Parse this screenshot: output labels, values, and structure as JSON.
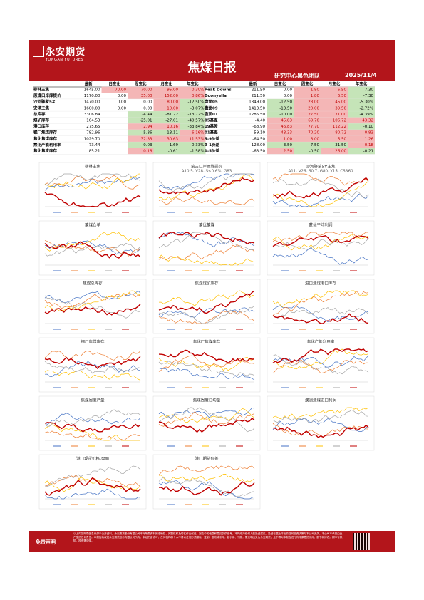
{
  "header": {
    "logo_cn": "永安期货",
    "logo_en": "YONGAN FUTURES",
    "title": "焦煤日报",
    "team": "研究中心黑色团队",
    "date": "2025/11/4"
  },
  "table": {
    "columns": [
      "最新",
      "日变化",
      "周变化",
      "月变化",
      "年变化"
    ],
    "left_rows": [
      [
        "柳林主焦",
        "1645.00",
        "70.00",
        "70.00",
        "95.00",
        "0.30%"
      ],
      [
        "原煤口岸库提价",
        "1170.00",
        "0.00",
        "35.00",
        "152.00",
        "0.86%"
      ],
      [
        "沙河驿蒙5#",
        "1470.00",
        "0.00",
        "0.00",
        "80.00",
        "-12.50%"
      ],
      [
        "安泽主焦",
        "1600.00",
        "0.00",
        "0.00",
        "10.00",
        "-3.07%"
      ],
      [
        "总库存",
        "3306.84",
        null,
        "-4.44",
        "-81.22",
        "-13.72%"
      ],
      [
        "煤矿库存",
        "164.53",
        null,
        "-25.01",
        "-27.01",
        "-40.57%"
      ],
      [
        "港口库存",
        "275.65",
        null,
        "2.94",
        "10.16",
        "-33.84%"
      ],
      [
        "钢厂焦煤库存",
        "782.96",
        null,
        "-5.36",
        "-13.11",
        "6.16%"
      ],
      [
        "焦化焦煤库存",
        "1029.70",
        null,
        "32.33",
        "30.63",
        "11.53%"
      ],
      [
        "焦化产能利用率",
        "73.44",
        null,
        "-0.03",
        "-1.69",
        "-0.33%"
      ],
      [
        "焦化焦炭库存",
        "85.21",
        null,
        "0.18",
        "-0.61",
        "-1.58%"
      ]
    ],
    "right_rows": [
      [
        "Peak Downs",
        "211.50",
        "0.00",
        "1.80",
        "6.50",
        "-7.30"
      ],
      [
        "Goonyella",
        "211.50",
        "0.00",
        "1.80",
        "6.50",
        "-7.30"
      ],
      [
        "盘面05",
        "1349.00",
        "-12.50",
        "28.00",
        "45.00",
        "-5.30%"
      ],
      [
        "盘面09",
        "1413.50",
        "-13.50",
        "20.00",
        "39.50",
        "-2.72%"
      ],
      [
        "盘面01",
        "1285.50",
        "-10.00",
        "27.50",
        "71.00",
        "-4.39%"
      ],
      [
        "05基差",
        "-4.40",
        "45.83",
        "69.70",
        "106.72",
        "43.32"
      ],
      [
        "09基差",
        "-68.90",
        "46.83",
        "77.70",
        "112.22",
        "-0.10"
      ],
      [
        "01基差",
        "59.10",
        "43.33",
        "70.20",
        "80.72",
        "0.83"
      ],
      [
        "5-9价差",
        "-64.50",
        "1.00",
        "8.00",
        "5.50",
        "1.26"
      ],
      [
        "9-1价差",
        "128.00",
        "-3.50",
        "-7.50",
        "-31.50",
        "0.18"
      ],
      [
        "1-5价差",
        "-63.50",
        "2.50",
        "-0.50",
        "26.00",
        "-0.21"
      ]
    ]
  },
  "charts": [
    {
      "title": "柳林主焦"
    },
    {
      "title": "蒙古口岸原煤提价",
      "subtitle": "A10.5, V28, S<0.6%, G83"
    },
    {
      "title": "沙河驿蒙5#主焦",
      "subtitle": "A11, V26, S0.7, G80, Y15, CSR60"
    },
    {
      "title": "蒙煤仓单"
    },
    {
      "title": "蒙优蒙煤"
    },
    {
      "title": "蒙优平均利润"
    },
    {
      "title": "焦煤总库存"
    },
    {
      "title": "焦煤煤矿库存"
    },
    {
      "title": "进口焦煤港口库存"
    },
    {
      "title": "钢厂焦煤库存"
    },
    {
      "title": "焦化厂焦煤库存"
    },
    {
      "title": "焦化产能利用率"
    },
    {
      "title": "焦煤周度产量"
    },
    {
      "title": "焦煤周度日均量"
    },
    {
      "title": "澳洲焦煤进口利润"
    },
    {
      "title": "港口现货价格-盘面"
    },
    {
      "title": "港口期货价差"
    }
  ],
  "footer": {
    "label": "免责声明",
    "text": "以上内容所载信息来源于公开资料，永安期货股份有限公司不对所载资料的准确性、完整性和及时性作出保证。报告中的信息和意见仅供参考，不构成对任何人的投资建议。投资者据此作出的任何投资决策与本公司无关，本公司不承担由此产生的任何责任。本报告版权归永安期货股份有限公司所有，未经书面许可，任何机构和个人不得以任何形式翻版、复制、发布或引用，如引用、刊发，需注明出处为永安期货，且不得对本报告进行有悖原意的引用、删节和修改。期市有风险，投资需谨慎。"
  }
}
